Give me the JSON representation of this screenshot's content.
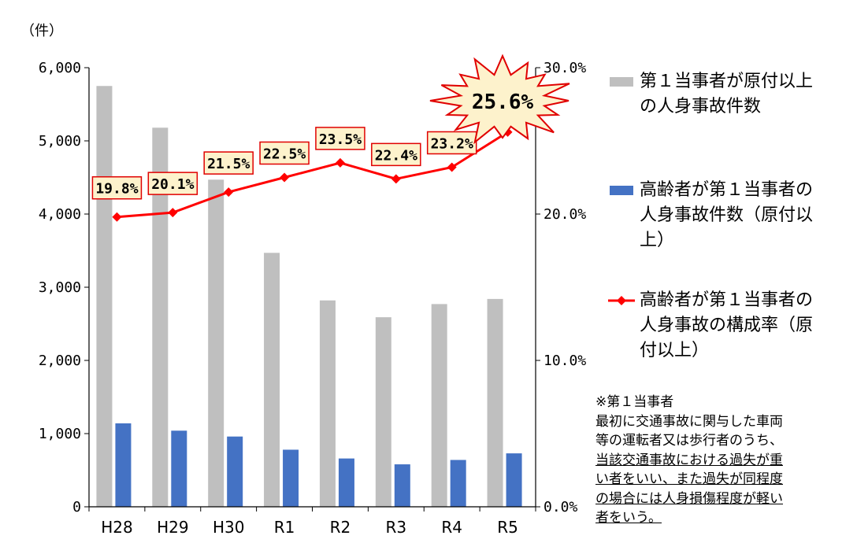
{
  "chart_data": {
    "type": "bar",
    "y_unit_label": "（件）",
    "categories": [
      "H28",
      "H29",
      "H30",
      "R1",
      "R2",
      "R3",
      "R4",
      "R5"
    ],
    "y_left": {
      "lim": [
        0,
        6000
      ],
      "ticks": [
        "0",
        "1,000",
        "2,000",
        "3,000",
        "4,000",
        "5,000",
        "6,000"
      ],
      "tick_values": [
        0,
        1000,
        2000,
        3000,
        4000,
        5000,
        6000
      ]
    },
    "y_right": {
      "lim": [
        0,
        30
      ],
      "ticks": [
        "0.0%",
        "10.0%",
        "20.0%",
        "30.0%"
      ],
      "tick_values": [
        0,
        10,
        20,
        30
      ]
    },
    "series": [
      {
        "name": "第１当事者が原付以上の人身事故件数",
        "kind": "bar",
        "axis": "left",
        "color": "#bfbfbf",
        "values": [
          5750,
          5180,
          4470,
          3470,
          2820,
          2590,
          2770,
          2840
        ]
      },
      {
        "name": "高齢者が第１当事者の人身事故件数（原付以上）",
        "kind": "bar",
        "axis": "left",
        "color": "#4472c4",
        "values": [
          1140,
          1040,
          960,
          780,
          660,
          580,
          640,
          730
        ]
      },
      {
        "name": "高齢者が第１当事者の人身事故の構成率（原付以上）",
        "kind": "line",
        "axis": "right",
        "color": "#ff0000",
        "values": [
          19.8,
          20.1,
          21.5,
          22.5,
          23.5,
          22.4,
          23.2,
          25.6
        ],
        "labels": [
          "19.8%",
          "20.1%",
          "21.5%",
          "22.5%",
          "23.5%",
          "22.4%",
          "23.2%",
          "25.6%"
        ]
      }
    ],
    "highlight_label": "25.6%",
    "legend_position": "right",
    "grid": false
  },
  "legend": [
    {
      "lines": [
        "第１当事者が原付以上",
        "の人身事故件数"
      ],
      "color": "#bfbfbf"
    },
    {
      "lines": [
        "高齢者が第１当事者の",
        "人身事故件数（原付以",
        "上）"
      ],
      "color": "#4472c4"
    },
    {
      "lines": [
        "高齢者が第１当事者の",
        "人身事故の構成率（原",
        "付以上）"
      ],
      "color": "#ff0000"
    }
  ],
  "note": {
    "title": "※第１当事者",
    "lines": [
      "最初に交通事故に関与した車両",
      "等の運転者又は歩行者のうち、"
    ],
    "underlined_lines": [
      "当該交通事故における過失が重",
      "い者をいい、また過失が同程度",
      "の場合には人身損傷程度が軽い",
      "者をいう。"
    ]
  }
}
